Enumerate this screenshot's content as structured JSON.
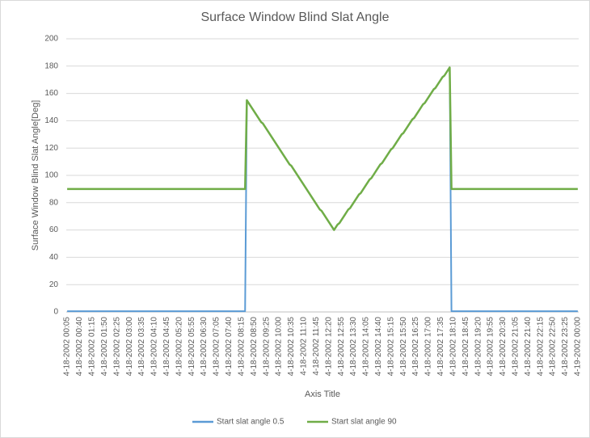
{
  "chart_data": {
    "type": "line",
    "title": "Surface Window Blind Slat Angle",
    "x_label": "Axis Title",
    "y_label": "Surface Window Blind Slat Angle[Deg]",
    "categories": [
      "4-18-2002 00:05",
      null,
      null,
      null,
      null,
      null,
      null,
      "4-18-2002 00:40",
      null,
      null,
      null,
      null,
      null,
      null,
      "4-18-2002 01:15",
      null,
      null,
      null,
      null,
      null,
      null,
      "4-18-2002 01:50",
      null,
      null,
      null,
      null,
      null,
      null,
      "4-18-2002 02:25",
      null,
      null,
      null,
      null,
      null,
      null,
      "4-18-2002 03:00",
      null,
      null,
      null,
      null,
      null,
      null,
      "4-18-2002 03:35",
      null,
      null,
      null,
      null,
      null,
      null,
      "4-18-2002 04:10",
      null,
      null,
      null,
      null,
      null,
      null,
      "4-18-2002 04:45",
      null,
      null,
      null,
      null,
      null,
      null,
      "4-18-2002 05:20",
      null,
      null,
      null,
      null,
      null,
      null,
      "4-18-2002 05:55",
      null,
      null,
      null,
      null,
      null,
      null,
      "4-18-2002 06:30",
      null,
      null,
      null,
      null,
      null,
      null,
      "4-18-2002 07:05",
      null,
      null,
      null,
      null,
      null,
      null,
      "4-18-2002 07:40",
      null,
      null,
      null,
      null,
      null,
      null,
      "4-18-2002 08:15",
      null,
      null,
      null,
      null,
      null,
      null,
      "4-18-2002 08:50",
      null,
      null,
      null,
      null,
      null,
      null,
      "4-18-2002 09:25",
      null,
      null,
      null,
      null,
      null,
      null,
      "4-18-2002 10:00",
      null,
      null,
      null,
      null,
      null,
      null,
      "4-18-2002 10:35",
      null,
      null,
      null,
      null,
      null,
      null,
      "4-18-2002 11:10",
      null,
      null,
      null,
      null,
      null,
      null,
      "4-18-2002 11:45",
      null,
      null,
      null,
      null,
      null,
      null,
      "4-18-2002 12:20",
      null,
      null,
      null,
      null,
      null,
      null,
      "4-18-2002 12:55",
      null,
      null,
      null,
      null,
      null,
      null,
      "4-18-2002 13:30",
      null,
      null,
      null,
      null,
      null,
      null,
      "4-18-2002 14:05",
      null,
      null,
      null,
      null,
      null,
      null,
      "4-18-2002 14:40",
      null,
      null,
      null,
      null,
      null,
      null,
      "4-18-2002 15:15",
      null,
      null,
      null,
      null,
      null,
      null,
      "4-18-2002 15:50",
      null,
      null,
      null,
      null,
      null,
      null,
      "4-18-2002 16:25",
      null,
      null,
      null,
      null,
      null,
      null,
      "4-18-2002 17:00",
      null,
      null,
      null,
      null,
      null,
      null,
      "4-18-2002 17:35",
      null,
      null,
      null,
      null,
      null,
      null,
      "4-18-2002 18:10",
      null,
      null,
      null,
      null,
      null,
      null,
      "4-18-2002 18:45",
      null,
      null,
      null,
      null,
      null,
      null,
      "4-18-2002 19:20",
      null,
      null,
      null,
      null,
      null,
      null,
      "4-18-2002 19:55",
      null,
      null,
      null,
      null,
      null,
      null,
      "4-18-2002 20:30",
      null,
      null,
      null,
      null,
      null,
      null,
      "4-18-2002 21:05",
      null,
      null,
      null,
      null,
      null,
      null,
      "4-18-2002 21:40",
      null,
      null,
      null,
      null,
      null,
      null,
      "4-18-2002 22:15",
      null,
      null,
      null,
      null,
      null,
      null,
      "4-18-2002 22:50",
      null,
      null,
      null,
      null,
      null,
      null,
      "4-18-2002 23:25",
      null,
      null,
      null,
      null,
      null,
      null,
      "4-19-2002 00:00"
    ],
    "series": [
      {
        "name": "Start slat angle 0.5",
        "color": "#5b9bd5",
        "values": [
          0.5,
          0.5,
          0.5,
          0.5,
          0.5,
          0.5,
          0.5,
          0.5,
          0.5,
          0.5,
          0.5,
          0.5,
          0.5,
          0.5,
          0.5,
          0.5,
          0.5,
          0.5,
          0.5,
          0.5,
          0.5,
          0.5,
          0.5,
          0.5,
          0.5,
          0.5,
          0.5,
          0.5,
          0.5,
          0.5,
          0.5,
          0.5,
          0.5,
          0.5,
          0.5,
          0.5,
          0.5,
          0.5,
          0.5,
          0.5,
          0.5,
          0.5,
          0.5,
          0.5,
          0.5,
          0.5,
          0.5,
          0.5,
          0.5,
          0.5,
          0.5,
          0.5,
          0.5,
          0.5,
          0.5,
          0.5,
          0.5,
          0.5,
          0.5,
          0.5,
          0.5,
          0.5,
          0.5,
          0.5,
          0.5,
          0.5,
          0.5,
          0.5,
          0.5,
          0.5,
          0.5,
          0.5,
          0.5,
          0.5,
          0.5,
          0.5,
          0.5,
          0.5,
          0.5,
          0.5,
          0.5,
          0.5,
          0.5,
          0.5,
          0.5,
          0.5,
          0.5,
          0.5,
          0.5,
          0.5,
          0.5,
          0.5,
          0.5,
          0.5,
          0.5,
          0.5,
          0.5,
          0.5,
          0.5,
          0.5,
          0.5,
          155,
          153,
          151,
          149,
          147,
          145,
          143,
          141,
          139,
          138,
          136,
          134,
          132,
          130,
          128,
          126,
          124,
          122,
          120,
          118,
          116,
          114,
          112,
          110,
          108,
          107,
          105,
          103,
          101,
          99,
          97,
          95,
          93,
          91,
          89,
          87,
          85,
          83,
          81,
          79,
          77,
          75,
          74,
          72,
          70,
          68,
          66,
          64,
          62,
          60,
          62,
          64,
          65,
          67,
          69,
          71,
          73,
          75,
          76,
          78,
          80,
          82,
          84,
          86,
          87,
          89,
          91,
          93,
          95,
          97,
          98,
          100,
          102,
          104,
          106,
          108,
          109,
          111,
          113,
          115,
          117,
          119,
          120,
          122,
          124,
          126,
          128,
          130,
          131,
          133,
          135,
          137,
          139,
          141,
          142,
          144,
          146,
          148,
          150,
          152,
          153,
          155,
          157,
          159,
          161,
          163,
          164,
          166,
          168,
          170,
          172,
          173,
          175,
          177,
          179,
          0.5,
          0.5,
          0.5,
          0.5,
          0.5,
          0.5,
          0.5,
          0.5,
          0.5,
          0.5,
          0.5,
          0.5,
          0.5,
          0.5,
          0.5,
          0.5,
          0.5,
          0.5,
          0.5,
          0.5,
          0.5,
          0.5,
          0.5,
          0.5,
          0.5,
          0.5,
          0.5,
          0.5,
          0.5,
          0.5,
          0.5,
          0.5,
          0.5,
          0.5,
          0.5,
          0.5,
          0.5,
          0.5,
          0.5,
          0.5,
          0.5,
          0.5,
          0.5,
          0.5,
          0.5,
          0.5,
          0.5,
          0.5,
          0.5,
          0.5,
          0.5,
          0.5,
          0.5,
          0.5,
          0.5,
          0.5,
          0.5,
          0.5,
          0.5,
          0.5,
          0.5,
          0.5,
          0.5,
          0.5,
          0.5,
          0.5,
          0.5,
          0.5,
          0.5,
          0.5,
          0.5,
          0.5
        ]
      },
      {
        "name": "Start slat angle 90",
        "color": "#70ad47",
        "values": [
          90,
          90,
          90,
          90,
          90,
          90,
          90,
          90,
          90,
          90,
          90,
          90,
          90,
          90,
          90,
          90,
          90,
          90,
          90,
          90,
          90,
          90,
          90,
          90,
          90,
          90,
          90,
          90,
          90,
          90,
          90,
          90,
          90,
          90,
          90,
          90,
          90,
          90,
          90,
          90,
          90,
          90,
          90,
          90,
          90,
          90,
          90,
          90,
          90,
          90,
          90,
          90,
          90,
          90,
          90,
          90,
          90,
          90,
          90,
          90,
          90,
          90,
          90,
          90,
          90,
          90,
          90,
          90,
          90,
          90,
          90,
          90,
          90,
          90,
          90,
          90,
          90,
          90,
          90,
          90,
          90,
          90,
          90,
          90,
          90,
          90,
          90,
          90,
          90,
          90,
          90,
          90,
          90,
          90,
          90,
          90,
          90,
          90,
          90,
          90,
          90,
          155,
          153,
          151,
          149,
          147,
          145,
          143,
          141,
          139,
          138,
          136,
          134,
          132,
          130,
          128,
          126,
          124,
          122,
          120,
          118,
          116,
          114,
          112,
          110,
          108,
          107,
          105,
          103,
          101,
          99,
          97,
          95,
          93,
          91,
          89,
          87,
          85,
          83,
          81,
          79,
          77,
          75,
          74,
          72,
          70,
          68,
          66,
          64,
          62,
          60,
          62,
          64,
          65,
          67,
          69,
          71,
          73,
          75,
          76,
          78,
          80,
          82,
          84,
          86,
          87,
          89,
          91,
          93,
          95,
          97,
          98,
          100,
          102,
          104,
          106,
          108,
          109,
          111,
          113,
          115,
          117,
          119,
          120,
          122,
          124,
          126,
          128,
          130,
          131,
          133,
          135,
          137,
          139,
          141,
          142,
          144,
          146,
          148,
          150,
          152,
          153,
          155,
          157,
          159,
          161,
          163,
          164,
          166,
          168,
          170,
          172,
          173,
          175,
          177,
          179,
          90,
          90,
          90,
          90,
          90,
          90,
          90,
          90,
          90,
          90,
          90,
          90,
          90,
          90,
          90,
          90,
          90,
          90,
          90,
          90,
          90,
          90,
          90,
          90,
          90,
          90,
          90,
          90,
          90,
          90,
          90,
          90,
          90,
          90,
          90,
          90,
          90,
          90,
          90,
          90,
          90,
          90,
          90,
          90,
          90,
          90,
          90,
          90,
          90,
          90,
          90,
          90,
          90,
          90,
          90,
          90,
          90,
          90,
          90,
          90,
          90,
          90,
          90,
          90,
          90,
          90,
          90,
          90,
          90,
          90,
          90,
          90
        ]
      }
    ],
    "ylim": [
      0,
      200
    ],
    "yticks": [
      0,
      20,
      40,
      60,
      80,
      100,
      120,
      140,
      160,
      180,
      200
    ],
    "grid": true,
    "legend": "bottom"
  }
}
